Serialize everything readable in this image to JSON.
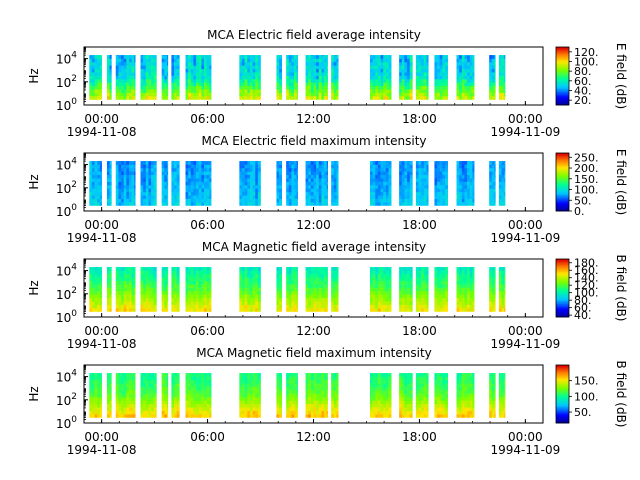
{
  "chart_data": [
    {
      "type": "heatmap",
      "title": "MCA  Electric field average intensity",
      "ylabel": "Hz",
      "y_scale": "log",
      "ylim": [
        1,
        100000
      ],
      "y_ticks": [
        {
          "base": "10",
          "exp": "0"
        },
        {
          "base": "10",
          "exp": "2"
        },
        {
          "base": "10",
          "exp": "4"
        }
      ],
      "x_ticks": [
        "00:00",
        "06:00",
        "12:00",
        "18:00",
        "00:00"
      ],
      "x_date_labels": [
        "1994-11-08",
        "1994-11-09"
      ],
      "colorbar": {
        "label": "E field (dB)",
        "ticks": [
          "20.",
          "40.",
          "60.",
          "80.",
          "100.",
          "120."
        ],
        "range": [
          10,
          130
        ]
      },
      "gaps_hours": [
        [
          0.0,
          0.3
        ],
        [
          1.0,
          1.3
        ],
        [
          1.55,
          1.8
        ],
        [
          2.9,
          3.2
        ],
        [
          4.1,
          4.4
        ],
        [
          4.75,
          4.95
        ],
        [
          5.4,
          5.75
        ],
        [
          7.2,
          8.8
        ],
        [
          10.0,
          10.9
        ],
        [
          11.2,
          11.45
        ],
        [
          12.1,
          12.55
        ],
        [
          13.8,
          14.0
        ],
        [
          14.4,
          16.2
        ],
        [
          17.4,
          17.85
        ],
        [
          18.6,
          18.8
        ],
        [
          19.5,
          19.85
        ],
        [
          20.6,
          21.1
        ],
        [
          22.1,
          22.95
        ],
        [
          23.3,
          23.5
        ],
        [
          23.85,
          26.0
        ]
      ],
      "intensity_profile": {
        "low_freq": 92,
        "mid_freq": 52,
        "high_freq": 48,
        "variation": 16
      }
    },
    {
      "type": "heatmap",
      "title": "MCA  Electric field maximum intensity",
      "ylabel": "Hz",
      "y_scale": "log",
      "ylim": [
        1,
        100000
      ],
      "y_ticks": [
        {
          "base": "10",
          "exp": "0"
        },
        {
          "base": "10",
          "exp": "2"
        },
        {
          "base": "10",
          "exp": "4"
        }
      ],
      "x_ticks": [
        "00:00",
        "06:00",
        "12:00",
        "18:00",
        "00:00"
      ],
      "x_date_labels": [
        "1994-11-08",
        "1994-11-09"
      ],
      "colorbar": {
        "label": "E field (dB)",
        "ticks": [
          "0.",
          "50.",
          "100.",
          "150.",
          "200.",
          "250."
        ],
        "range": [
          0,
          270
        ]
      },
      "gaps_hours": [
        [
          0.0,
          0.3
        ],
        [
          1.0,
          1.3
        ],
        [
          1.55,
          1.8
        ],
        [
          2.9,
          3.2
        ],
        [
          4.1,
          4.4
        ],
        [
          4.75,
          4.95
        ],
        [
          5.4,
          5.75
        ],
        [
          7.2,
          8.8
        ],
        [
          10.0,
          10.9
        ],
        [
          11.2,
          11.45
        ],
        [
          12.1,
          12.55
        ],
        [
          13.8,
          14.0
        ],
        [
          14.4,
          16.2
        ],
        [
          17.4,
          17.85
        ],
        [
          18.6,
          18.8
        ],
        [
          19.5,
          19.85
        ],
        [
          20.6,
          21.1
        ],
        [
          22.1,
          22.95
        ],
        [
          23.3,
          23.5
        ],
        [
          23.85,
          26.0
        ]
      ],
      "intensity_profile": {
        "low_freq": 85,
        "mid_freq": 75,
        "high_freq": 70,
        "variation": 22
      }
    },
    {
      "type": "heatmap",
      "title": "MCA  Magnetic field average intensity",
      "ylabel": "Hz",
      "y_scale": "log",
      "ylim": [
        1,
        100000
      ],
      "y_ticks": [
        {
          "base": "10",
          "exp": "0"
        },
        {
          "base": "10",
          "exp": "2"
        },
        {
          "base": "10",
          "exp": "4"
        }
      ],
      "x_ticks": [
        "00:00",
        "06:00",
        "12:00",
        "18:00",
        "00:00"
      ],
      "x_date_labels": [
        "1994-11-08",
        "1994-11-09"
      ],
      "colorbar": {
        "label": "B field (dB)",
        "ticks": [
          "40.",
          "60.",
          "80.",
          "100.",
          "120.",
          "140.",
          "160.",
          "180."
        ],
        "range": [
          35,
          190
        ]
      },
      "gaps_hours": [
        [
          0.0,
          0.3
        ],
        [
          1.0,
          1.3
        ],
        [
          1.55,
          1.8
        ],
        [
          2.9,
          3.2
        ],
        [
          4.1,
          4.4
        ],
        [
          4.75,
          4.95
        ],
        [
          5.4,
          5.75
        ],
        [
          7.2,
          8.8
        ],
        [
          10.0,
          10.9
        ],
        [
          11.2,
          11.45
        ],
        [
          12.1,
          12.55
        ],
        [
          13.8,
          14.0
        ],
        [
          14.4,
          16.2
        ],
        [
          17.4,
          17.85
        ],
        [
          18.6,
          18.8
        ],
        [
          19.5,
          19.85
        ],
        [
          20.6,
          21.1
        ],
        [
          22.1,
          22.95
        ],
        [
          23.3,
          23.5
        ],
        [
          23.85,
          26.0
        ]
      ],
      "intensity_profile": {
        "low_freq": 150,
        "mid_freq": 118,
        "high_freq": 95,
        "variation": 12
      }
    },
    {
      "type": "heatmap",
      "title": "MCA  Magnetic field maximum intensity",
      "ylabel": "Hz",
      "y_scale": "log",
      "ylim": [
        1,
        100000
      ],
      "y_ticks": [
        {
          "base": "10",
          "exp": "0"
        },
        {
          "base": "10",
          "exp": "2"
        },
        {
          "base": "10",
          "exp": "4"
        }
      ],
      "x_ticks": [
        "00:00",
        "06:00",
        "12:00",
        "18:00",
        "00:00"
      ],
      "x_date_labels": [
        "1994-11-08",
        "1994-11-09"
      ],
      "colorbar": {
        "label": "B field (dB)",
        "ticks": [
          "50.",
          "100.",
          "150."
        ],
        "range": [
          15,
          200
        ]
      },
      "gaps_hours": [
        [
          0.0,
          0.3
        ],
        [
          1.0,
          1.3
        ],
        [
          1.55,
          1.8
        ],
        [
          2.9,
          3.2
        ],
        [
          4.1,
          4.4
        ],
        [
          4.75,
          4.95
        ],
        [
          5.4,
          5.75
        ],
        [
          7.2,
          8.8
        ],
        [
          10.0,
          10.9
        ],
        [
          11.2,
          11.45
        ],
        [
          12.1,
          12.55
        ],
        [
          13.8,
          14.0
        ],
        [
          14.4,
          16.2
        ],
        [
          17.4,
          17.85
        ],
        [
          18.6,
          18.8
        ],
        [
          19.5,
          19.85
        ],
        [
          20.6,
          21.1
        ],
        [
          22.1,
          22.95
        ],
        [
          23.3,
          23.5
        ],
        [
          23.85,
          26.0
        ]
      ],
      "intensity_profile": {
        "low_freq": 160,
        "mid_freq": 118,
        "high_freq": 100,
        "variation": 14
      }
    }
  ],
  "x_axis": {
    "hours_span": 26
  }
}
